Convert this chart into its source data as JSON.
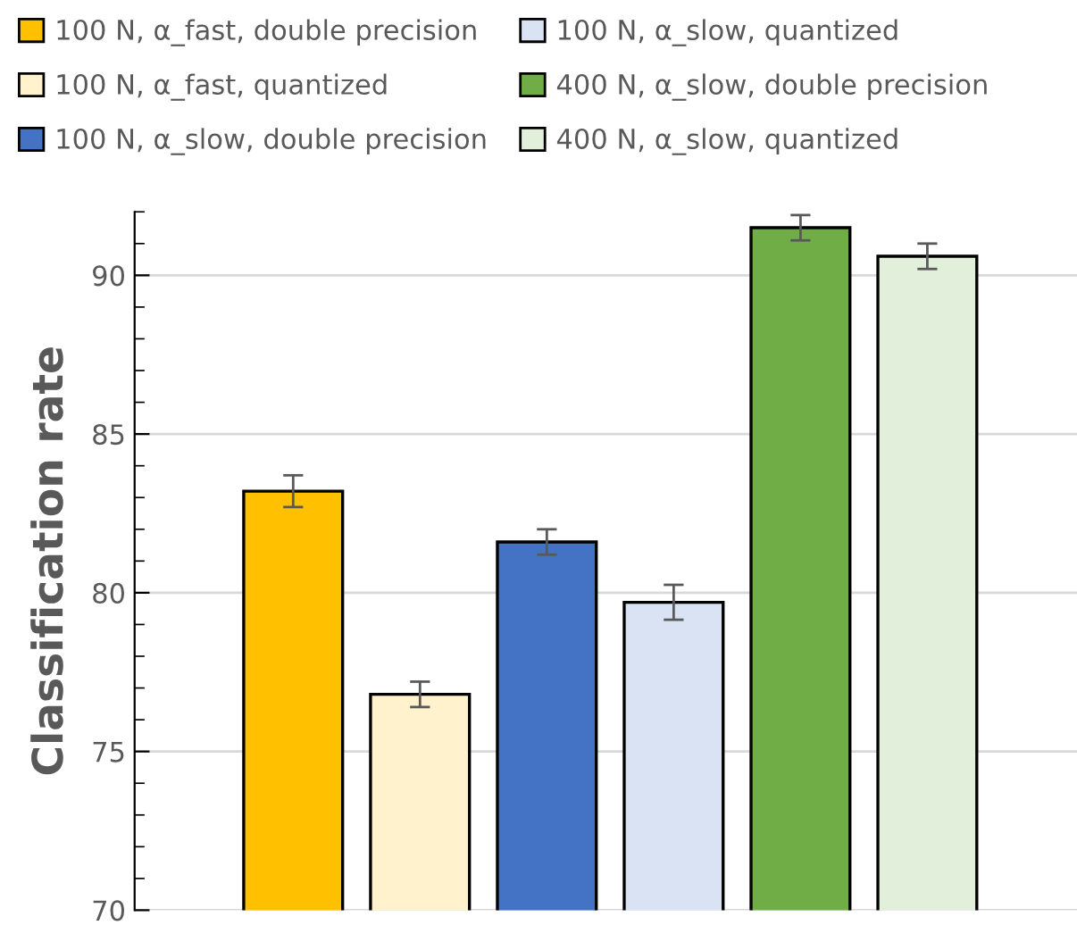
{
  "chart_data": {
    "type": "bar",
    "ylabel": "Classification rate",
    "categories": [
      null,
      null,
      null,
      null,
      null,
      null
    ],
    "series": [
      {
        "name": "100 N, α_fast, double precision",
        "color": "#ffc000",
        "values": [
          83.2,
          null,
          null,
          null,
          null,
          null
        ],
        "errors": [
          0.5,
          null,
          null,
          null,
          null,
          null
        ]
      },
      {
        "name": "100 N, α_fast, quantized",
        "color": "#fff2cc",
        "values": [
          null,
          76.8,
          null,
          null,
          null,
          null
        ],
        "errors": [
          null,
          0.4,
          null,
          null,
          null,
          null
        ]
      },
      {
        "name": "100 N, α_slow, double precision",
        "color": "#4472c4",
        "values": [
          null,
          null,
          81.6,
          null,
          null,
          null
        ],
        "errors": [
          null,
          null,
          0.4,
          null,
          null,
          null
        ]
      },
      {
        "name": "100 N, α_slow, quantized",
        "color": "#dae3f3",
        "values": [
          null,
          null,
          null,
          79.7,
          null,
          null
        ],
        "errors": [
          null,
          null,
          null,
          0.55,
          null,
          null
        ]
      },
      {
        "name": "400 N, α_slow, double precision",
        "color": "#70ad47",
        "values": [
          null,
          null,
          null,
          null,
          91.5,
          null
        ],
        "errors": [
          null,
          null,
          null,
          null,
          0.4,
          null
        ]
      },
      {
        "name": "400 N, α_slow, quantized",
        "color": "#e2efda",
        "values": [
          null,
          null,
          null,
          null,
          null,
          90.6
        ],
        "errors": [
          null,
          null,
          null,
          null,
          null,
          0.4
        ]
      }
    ],
    "ylim": [
      70,
      92
    ],
    "yticks": [
      70,
      75,
      80,
      85,
      90
    ],
    "grid": "y",
    "legend": "top",
    "tick_labels": "y"
  }
}
